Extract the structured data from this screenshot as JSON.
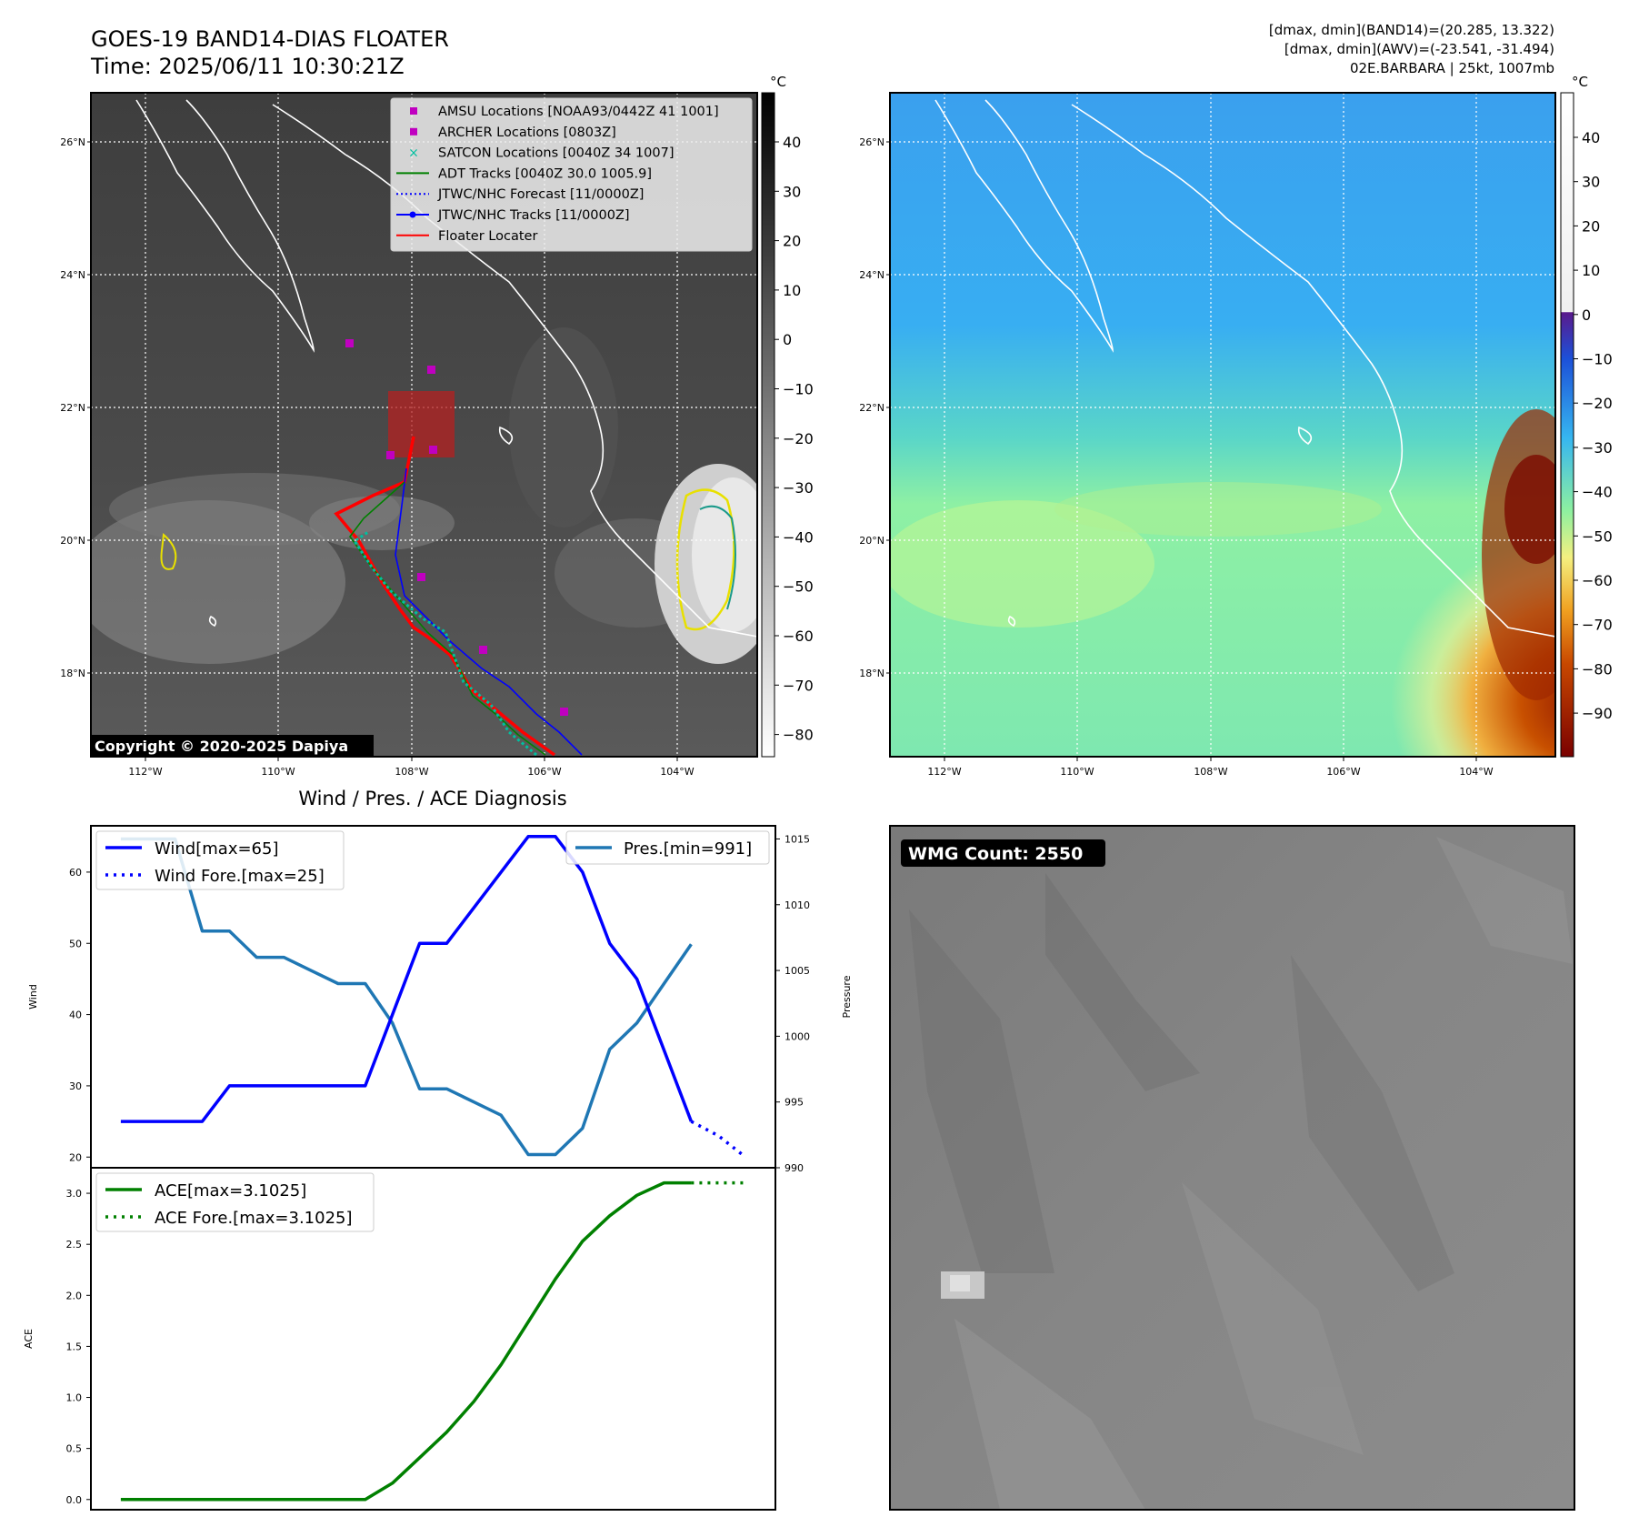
{
  "header": {
    "title": "GOES-19 BAND14-DIAS FLOATER",
    "time": "Time: 2025/06/11 10:30:21Z",
    "stats_band14": "[dmax, dmin](BAND14)=(20.285, 13.322)",
    "stats_awv": "[dmax, dmin](AWV)=(-23.541, -31.494)",
    "storm": "02E.BARBARA | 25kt, 1007mb"
  },
  "ir_map": {
    "colorbar_unit": "°C",
    "colorbar_ticks": [
      "40",
      "30",
      "20",
      "10",
      "0",
      "−10",
      "−20",
      "−30",
      "−40",
      "−50",
      "−60",
      "−70",
      "−80"
    ],
    "lat_labels": [
      "26°N",
      "24°N",
      "22°N",
      "20°N",
      "18°N"
    ],
    "lon_labels": [
      "112°W",
      "110°W",
      "108°W",
      "106°W",
      "104°W"
    ],
    "copyright": "Copyright © 2020-2025 Dapiya",
    "legend": [
      {
        "label": "AMSU Locations [NOAA93/0442Z 41 1001]",
        "color": "#c000c0"
      },
      {
        "label": "ARCHER Locations [0803Z]",
        "color": "#c000c0"
      },
      {
        "label": "SATCON Locations [0040Z 34 1007]",
        "color": "#00c0a0"
      },
      {
        "label": "ADT Tracks [0040Z 30.0 1005.9]",
        "color": "#008000"
      },
      {
        "label": "JTWC/NHC Forecast [11/0000Z]",
        "color": "#0000ff"
      },
      {
        "label": "JTWC/NHC Tracks [11/0000Z]",
        "color": "#0000ff"
      },
      {
        "label": "Floater Locater",
        "color": "#ff0000"
      }
    ]
  },
  "awv_map": {
    "colorbar_unit": "°C",
    "colorbar_ticks": [
      "40",
      "30",
      "20",
      "10",
      "0",
      "−10",
      "−20",
      "−30",
      "−40",
      "−50",
      "−60",
      "−70",
      "−80",
      "−90"
    ],
    "lat_labels": [
      "26°N",
      "24°N",
      "22°N",
      "20°N",
      "18°N"
    ],
    "lon_labels": [
      "112°W",
      "110°W",
      "108°W",
      "106°W",
      "104°W"
    ]
  },
  "wmg": {
    "label": "WMG Count: 2550"
  },
  "diagnosis": {
    "title": "Wind / Pres. / ACE Diagnosis",
    "wind_axis_label": "Wind",
    "pressure_axis_label": "Pressure",
    "ace_axis_label": "ACE",
    "wind_ticks": [
      "60",
      "50",
      "40",
      "30",
      "20"
    ],
    "pressure_ticks": [
      "1015",
      "1010",
      "1005",
      "1000",
      "995",
      "990"
    ],
    "ace_ticks": [
      "3.0",
      "2.5",
      "2.0",
      "1.5",
      "1.0",
      "0.5",
      "0.0"
    ],
    "legend_wind": "Wind[max=65]",
    "legend_wind_fore": "Wind Fore.[max=25]",
    "legend_pres": "Pres.[min=991]",
    "legend_ace": "ACE[max=3.1025]",
    "legend_ace_fore": "ACE Fore.[max=3.1025]"
  },
  "chart_data": [
    {
      "type": "line",
      "title": "Wind / Pres. / ACE Diagnosis",
      "ylabel": "Wind",
      "ylim": [
        18.5,
        66.5
      ],
      "x": [
        0,
        1,
        2,
        3,
        4,
        5,
        6,
        7,
        8,
        9,
        10,
        11,
        12,
        13,
        14,
        15,
        16,
        17,
        18,
        19,
        20,
        21,
        22,
        23
      ],
      "series": [
        {
          "name": "Wind[max=65]",
          "x": [
            0,
            1,
            2,
            3,
            4,
            5,
            6,
            7,
            8,
            9,
            10,
            11,
            12,
            13,
            14,
            15,
            16,
            17,
            18,
            19,
            20,
            21
          ],
          "values": [
            25,
            25,
            25,
            25,
            30,
            30,
            30,
            30,
            30,
            30,
            40,
            50,
            50,
            55,
            60,
            65,
            65,
            60,
            50,
            45,
            35,
            25
          ]
        },
        {
          "name": "Wind Fore.[max=25]",
          "x": [
            21,
            22,
            23
          ],
          "values": [
            25,
            23,
            20
          ]
        }
      ]
    },
    {
      "type": "line",
      "ylabel": "Pressure",
      "ylim": [
        990,
        1016
      ],
      "series": [
        {
          "name": "Pres.[min=991]",
          "x": [
            0,
            1,
            2,
            3,
            4,
            5,
            6,
            7,
            8,
            9,
            10,
            11,
            12,
            13,
            14,
            15,
            16,
            17,
            18,
            19,
            20,
            21
          ],
          "values": [
            1015,
            1015,
            1015,
            1008,
            1008,
            1006,
            1006,
            1005,
            1004,
            1004,
            1001,
            996,
            996,
            995,
            994,
            991,
            991,
            993,
            999,
            1001,
            1004,
            1007
          ]
        }
      ]
    },
    {
      "type": "line",
      "ylabel": "ACE",
      "ylim": [
        -0.1,
        3.25
      ],
      "series": [
        {
          "name": "ACE[max=3.1025]",
          "x": [
            0,
            1,
            2,
            3,
            4,
            5,
            6,
            7,
            8,
            9,
            10,
            11,
            12,
            13,
            14,
            15,
            16,
            17,
            18,
            19,
            20,
            21
          ],
          "values": [
            0,
            0,
            0,
            0,
            0,
            0,
            0,
            0,
            0,
            0,
            0.16,
            0.41,
            0.66,
            0.96,
            1.32,
            1.74,
            2.16,
            2.53,
            2.78,
            2.98,
            3.1025,
            3.1025
          ]
        },
        {
          "name": "ACE Fore.[max=3.1025]",
          "x": [
            21,
            22,
            23
          ],
          "values": [
            3.1025,
            3.1025,
            3.1025
          ]
        }
      ]
    }
  ]
}
